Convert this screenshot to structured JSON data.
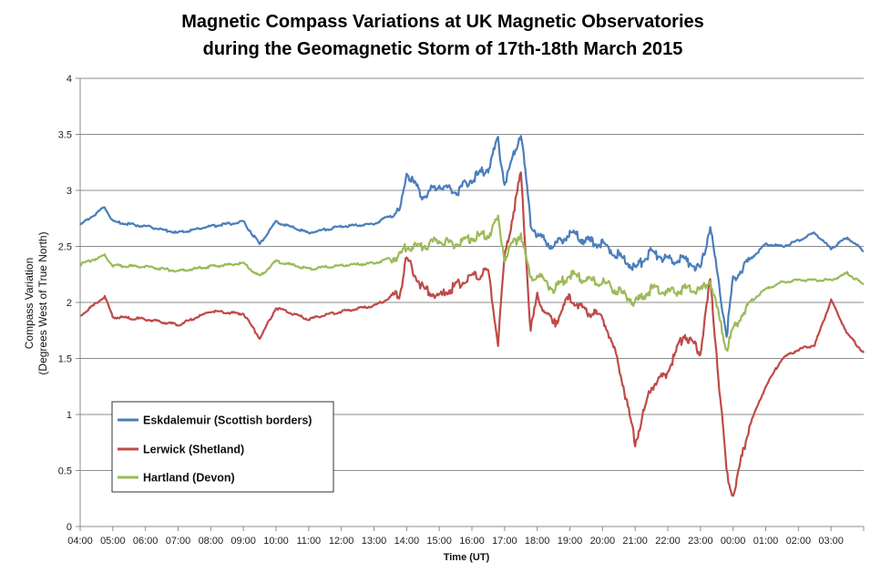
{
  "chart_data": {
    "type": "line",
    "title": "Magnetic Compass Variations at UK Magnetic Observatories",
    "subtitle": "during the Geomagnetic Storm of 17th-18th March 2015",
    "xlabel": "Time (UT)",
    "ylabel_line1": "Compass Variation",
    "ylabel_line2": "(Degrees West of True North)",
    "ylim": [
      0,
      4
    ],
    "yticks": [
      "0",
      "0.5",
      "1",
      "1.5",
      "2",
      "2.5",
      "3",
      "3.5",
      "4"
    ],
    "grid": true,
    "x_hours": [
      0,
      0.75,
      1,
      2,
      3,
      4,
      5,
      5.5,
      6,
      7,
      8,
      9,
      9.8,
      10,
      10.5,
      11,
      11.5,
      12,
      12.5,
      12.8,
      13,
      13.5,
      13.8,
      14,
      14.5,
      15,
      15.5,
      16,
      16.5,
      17,
      17.5,
      18,
      18.5,
      19,
      19.3,
      19.8,
      20,
      20.5,
      21,
      21.5,
      22,
      22.5,
      23,
      23.5,
      24
    ],
    "xticks": [
      "04:00",
      "05:00",
      "06:00",
      "07:00",
      "08:00",
      "09:00",
      "10:00",
      "11:00",
      "12:00",
      "13:00",
      "14:00",
      "15:00",
      "16:00",
      "17:00",
      "18:00",
      "19:00",
      "20:00",
      "21:00",
      "22:00",
      "23:00",
      "00:00",
      "01:00",
      "02:00",
      "03:00"
    ],
    "legend_position": "bottom-left",
    "series": [
      {
        "name": "Eskdalemuir (Scottish borders)",
        "color": "#4a7ebb",
        "values": [
          2.69,
          2.85,
          2.72,
          2.68,
          2.62,
          2.68,
          2.72,
          2.52,
          2.72,
          2.62,
          2.68,
          2.7,
          2.82,
          3.15,
          2.95,
          3.05,
          2.98,
          3.1,
          3.2,
          3.45,
          3.05,
          3.52,
          2.72,
          2.6,
          2.5,
          2.62,
          2.55,
          2.52,
          2.42,
          2.3,
          2.45,
          2.38,
          2.38,
          2.3,
          2.68,
          1.7,
          2.2,
          2.38,
          2.52,
          2.5,
          2.55,
          2.62,
          2.48,
          2.58,
          2.46
        ]
      },
      {
        "name": "Lerwick (Shetland)",
        "color": "#be4b48",
        "values": [
          1.88,
          2.05,
          1.87,
          1.85,
          1.8,
          1.92,
          1.9,
          1.68,
          1.95,
          1.85,
          1.92,
          1.97,
          2.08,
          2.4,
          2.12,
          2.05,
          2.15,
          2.22,
          2.28,
          1.65,
          2.4,
          3.15,
          1.75,
          2.05,
          1.8,
          2.05,
          1.92,
          1.88,
          1.45,
          0.75,
          1.25,
          1.38,
          1.72,
          1.55,
          2.2,
          0.5,
          0.28,
          0.9,
          1.25,
          1.5,
          1.58,
          1.62,
          2.02,
          1.72,
          1.55
        ]
      },
      {
        "name": "Hartland (Devon)",
        "color": "#9bbb59",
        "values": [
          2.34,
          2.42,
          2.33,
          2.32,
          2.28,
          2.32,
          2.35,
          2.23,
          2.37,
          2.3,
          2.33,
          2.35,
          2.42,
          2.5,
          2.5,
          2.55,
          2.52,
          2.58,
          2.6,
          2.75,
          2.4,
          2.62,
          2.2,
          2.25,
          2.12,
          2.25,
          2.2,
          2.18,
          2.1,
          2.0,
          2.12,
          2.08,
          2.12,
          2.1,
          2.2,
          1.58,
          1.75,
          2.0,
          2.12,
          2.18,
          2.2,
          2.2,
          2.2,
          2.26,
          2.16
        ]
      }
    ]
  }
}
